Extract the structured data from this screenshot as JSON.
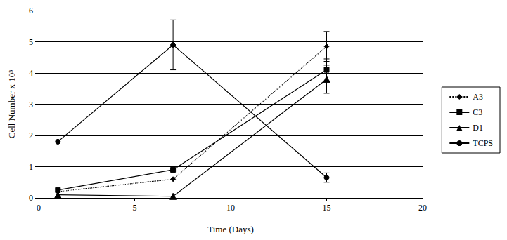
{
  "chart_data": {
    "type": "line",
    "x_label": "Time (Days)",
    "y_label": "Cell Number x 10³",
    "x": [
      1,
      7,
      15
    ],
    "xlim": [
      0,
      20
    ],
    "xticks": [
      0,
      5,
      10,
      15,
      20
    ],
    "ylim": [
      0,
      6
    ],
    "yticks": [
      0,
      1,
      2,
      3,
      4,
      5,
      6
    ],
    "grid": true,
    "legend": "right",
    "series": [
      {
        "name": "A3",
        "color": "#000000",
        "marker": "diamond",
        "line_style": "dotted",
        "values": [
          0.2,
          0.6,
          4.85
        ],
        "errors": [
          null,
          null,
          0.48
        ]
      },
      {
        "name": "C3",
        "color": "#000000",
        "marker": "square",
        "line_style": "solid",
        "values": [
          0.25,
          0.9,
          4.1
        ],
        "errors": [
          null,
          null,
          0.35
        ]
      },
      {
        "name": "D1",
        "color": "#000000",
        "marker": "triangle",
        "line_style": "solid",
        "values": [
          0.1,
          0.05,
          3.8
        ],
        "errors": [
          null,
          null,
          0.45
        ]
      },
      {
        "name": "TCPS",
        "color": "#000000",
        "marker": "circle",
        "line_style": "solid",
        "values": [
          1.8,
          4.9,
          0.65
        ],
        "errors": [
          null,
          0.8,
          0.15
        ]
      }
    ]
  }
}
